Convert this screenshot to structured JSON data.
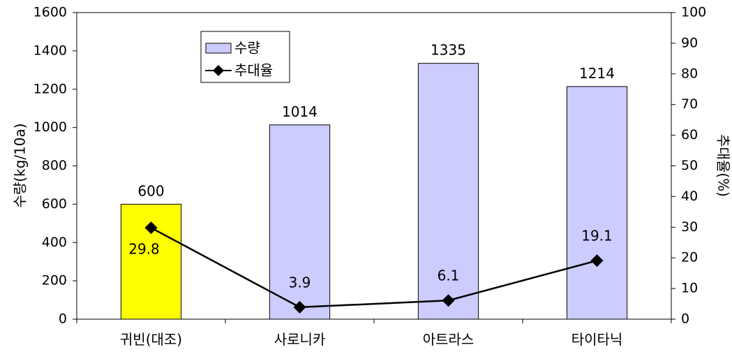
{
  "chart_data": {
    "type": "bar",
    "categories": [
      "귀빈(대조)",
      "사로니카",
      "아트라스",
      "타이타닉"
    ],
    "series": [
      {
        "name": "수량",
        "type": "bar",
        "axis": "left",
        "values": [
          600,
          1014,
          1335,
          1214
        ],
        "colors": [
          "#ffff00",
          "#ccccff",
          "#ccccff",
          "#ccccff"
        ],
        "value_labels": [
          "600",
          "1014",
          "1335",
          "1214"
        ]
      },
      {
        "name": "추대율",
        "type": "line",
        "axis": "right",
        "values": [
          29.8,
          3.9,
          6.1,
          19.1
        ],
        "color": "#000000",
        "marker": "diamond",
        "value_labels": [
          "29.8",
          "3.9",
          "6.1",
          "19.1"
        ]
      }
    ],
    "ylabel": "수량(kg/10a)",
    "y2label": "추대율(%)",
    "ylim": [
      0,
      1600
    ],
    "y2lim": [
      0,
      100
    ],
    "yticks": [
      "0",
      "200",
      "400",
      "600",
      "800",
      "1000",
      "1200",
      "1400",
      "1600"
    ],
    "y2ticks": [
      "0",
      "10",
      "20",
      "30",
      "40",
      "50",
      "60",
      "70",
      "80",
      "90",
      "100"
    ],
    "legend_position": "top-left inside",
    "grid": false
  }
}
